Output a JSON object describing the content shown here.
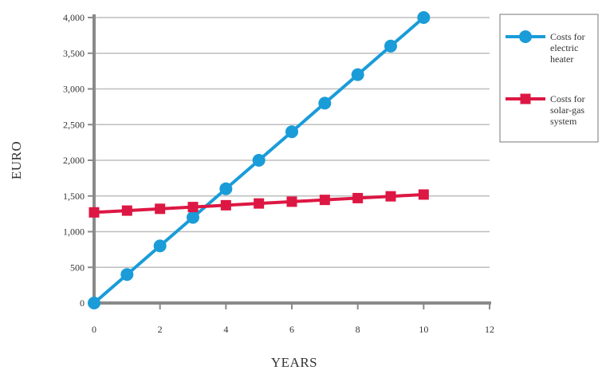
{
  "chart_data": {
    "type": "line",
    "xlabel": "YEARS",
    "ylabel": "EURO",
    "xlim": [
      0,
      12
    ],
    "ylim": [
      0,
      4000
    ],
    "x_ticks": [
      0,
      2,
      4,
      6,
      8,
      10,
      12
    ],
    "y_ticks": [
      0,
      500,
      1000,
      1500,
      2000,
      2500,
      3000,
      3500,
      4000
    ],
    "x_tick_labels": [
      "0",
      "2",
      "4",
      "6",
      "8",
      "10",
      "12"
    ],
    "y_tick_labels": [
      "0",
      "500",
      "1,000",
      "1,500",
      "2,000",
      "2,500",
      "3,000",
      "3,500",
      "4,000"
    ],
    "grid": "horizontal",
    "legend_position": "right",
    "x": [
      0,
      1,
      2,
      3,
      4,
      5,
      6,
      7,
      8,
      9,
      10
    ],
    "series": [
      {
        "name": "Costs for electric heater",
        "legend_lines": [
          "Costs for",
          "electric",
          "heater"
        ],
        "color": "#1a9cd8",
        "marker": "circle",
        "values": [
          0,
          400,
          800,
          1200,
          1600,
          2000,
          2400,
          2800,
          3200,
          3600,
          4000
        ]
      },
      {
        "name": "Costs for solar-gas system",
        "legend_lines": [
          "Costs for",
          "solar-gas",
          "system"
        ],
        "color": "#dd1743",
        "marker": "square",
        "values": [
          1270,
          1295,
          1320,
          1345,
          1370,
          1395,
          1420,
          1445,
          1470,
          1495,
          1520
        ]
      }
    ]
  }
}
